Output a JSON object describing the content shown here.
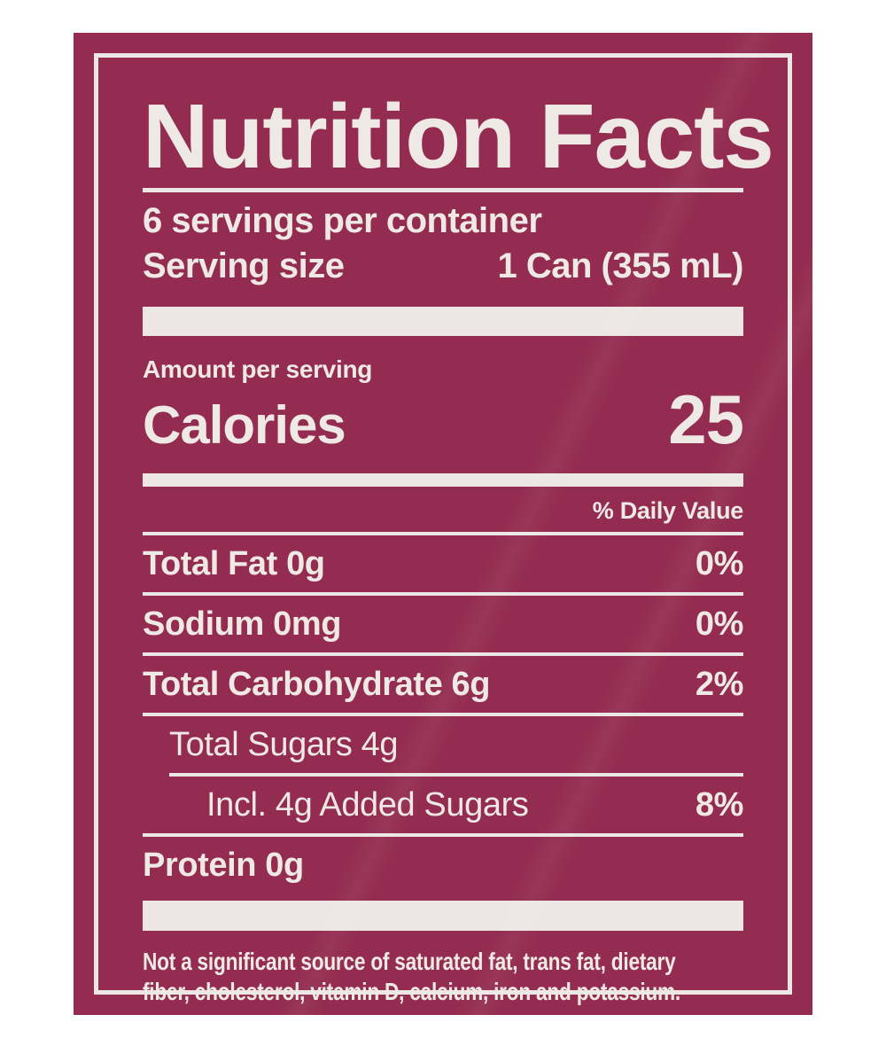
{
  "colors": {
    "label_background": "#932c50",
    "ink": "#efe9e6",
    "page_background": "#ffffff"
  },
  "header": {
    "title": "Nutrition Facts",
    "servings_per_container": "6 servings per container",
    "serving_size_label": "Serving size",
    "serving_size_value": "1 Can (355 mL)"
  },
  "calories": {
    "amount_label": "Amount per serving",
    "label": "Calories",
    "value": "25"
  },
  "daily_value_header": "% Daily Value",
  "nutrients": [
    {
      "label": "Total Fat 0g",
      "daily_value": "0%"
    },
    {
      "label": "Sodium 0mg",
      "daily_value": "0%"
    },
    {
      "label": "Total Carbohydrate 6g",
      "daily_value": "2%"
    },
    {
      "label": "Total Sugars 4g",
      "daily_value": ""
    },
    {
      "label": "Incl. 4g Added Sugars",
      "daily_value": "8%"
    },
    {
      "label": "Protein 0g",
      "daily_value": ""
    }
  ],
  "footnote_lines": [
    "Not a significant source of saturated fat, trans fat, dietary",
    "fiber, cholesterol, vitamin D, calcium, iron and potassium."
  ]
}
